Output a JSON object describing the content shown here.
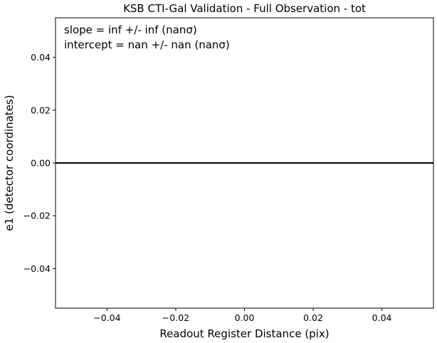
{
  "chart_data": {
    "type": "line",
    "title": "KSB CTI-Gal Validation - Full Observation - tot",
    "xlabel": "Readout Register Distance (pix)",
    "ylabel": "e1 (detector coordinates)",
    "xlim": [
      -0.055,
      0.055
    ],
    "ylim": [
      -0.055,
      0.055
    ],
    "xticks": [
      -0.04,
      -0.02,
      0.0,
      0.02,
      0.04
    ],
    "xtick_labels": [
      "−0.04",
      "−0.02",
      "0.00",
      "0.02",
      "0.04"
    ],
    "yticks": [
      0.04,
      0.02,
      0.0,
      -0.02,
      -0.04
    ],
    "ytick_labels": [
      "0.04",
      "0.02",
      "0.00",
      "−0.02",
      "−0.04"
    ],
    "grid": false,
    "series": [
      {
        "x": [
          -0.055,
          0.055
        ],
        "y": [
          0,
          0
        ],
        "color": "#000000"
      }
    ],
    "annotations": {
      "slope": "slope = inf +/- inf (nanσ)",
      "intercept": "intercept = nan +/- nan (nanσ)"
    }
  }
}
